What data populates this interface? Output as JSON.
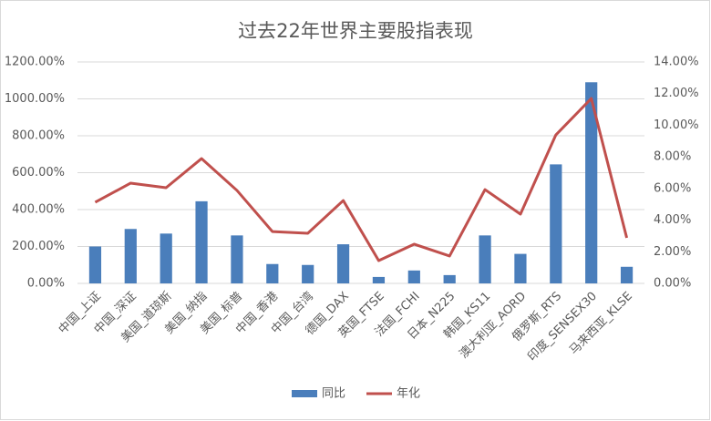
{
  "chart_data": {
    "type": "bar-line",
    "title": "过去22年世界主要股指表现",
    "categories": [
      "中国_上证",
      "中国_深证",
      "美国_道琼斯",
      "美国_纳指",
      "美国_标普",
      "中国_香港",
      "中国_台湾",
      "德国_DAX",
      "英国_FTSE",
      "法国_FCHI",
      "日本_N225",
      "韩国_KS11",
      "澳大利亚_AORD",
      "俄罗斯_RTS",
      "印度_SENSEX30",
      "马来西亚_KLSE"
    ],
    "series": [
      {
        "name": "同比",
        "type": "bar",
        "color": "#4a7ebb",
        "values": [
          200,
          295,
          270,
          445,
          260,
          105,
          100,
          212,
          35,
          70,
          45,
          260,
          160,
          645,
          1090,
          90
        ]
      },
      {
        "name": "年化",
        "type": "line",
        "axis": "y2",
        "color": "#c0504d",
        "values": [
          5.13,
          6.34,
          6.05,
          7.89,
          5.88,
          3.28,
          3.17,
          5.24,
          1.44,
          2.48,
          1.73,
          5.93,
          4.38,
          9.39,
          11.69,
          2.88
        ]
      }
    ],
    "ylim": [
      0,
      1200
    ],
    "yticks": [
      {
        "value": 0,
        "label": "0.00%"
      },
      {
        "value": 200,
        "label": "200.00%"
      },
      {
        "value": 400,
        "label": "400.00%"
      },
      {
        "value": 600,
        "label": "600.00%"
      },
      {
        "value": 800,
        "label": "800.00%"
      },
      {
        "value": 1000,
        "label": "1000.00%"
      },
      {
        "value": 1200,
        "label": "1200.00%"
      }
    ],
    "y2lim": [
      0,
      14
    ],
    "y2ticks": [
      {
        "value": 0,
        "label": "0.00%"
      },
      {
        "value": 2,
        "label": "2.00%"
      },
      {
        "value": 4,
        "label": "4.00%"
      },
      {
        "value": 6,
        "label": "6.00%"
      },
      {
        "value": 8,
        "label": "8.00%"
      },
      {
        "value": 10,
        "label": "10.00%"
      },
      {
        "value": 12,
        "label": "12.00%"
      },
      {
        "value": 14,
        "label": "14.00%"
      }
    ],
    "grid": true,
    "legend": "bottom"
  }
}
